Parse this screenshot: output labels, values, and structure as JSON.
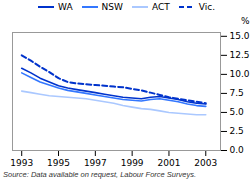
{
  "chart_data": {
    "type": "line",
    "ylabel": "%",
    "annotations": [
      "Source: Data available on request, Labour Force Surveys."
    ],
    "x": [
      1993,
      1993.5,
      1994,
      1994.5,
      1995,
      1995.5,
      1996,
      1996.5,
      1997,
      1997.5,
      1998,
      1998.5,
      1999,
      1999.5,
      2000,
      2000.5,
      2001,
      2001.5,
      2002,
      2002.5,
      2003
    ],
    "series": [
      {
        "name": "WA",
        "color": "#0033cc",
        "line_style": "solid",
        "values": [
          10.8,
          10.2,
          9.5,
          9.0,
          8.5,
          8.2,
          8.0,
          7.8,
          7.6,
          7.4,
          7.2,
          7.0,
          6.9,
          6.8,
          7.0,
          7.1,
          6.9,
          6.7,
          6.4,
          6.2,
          6.1
        ]
      },
      {
        "name": "NSW",
        "color": "#3377ff",
        "line_style": "solid",
        "values": [
          10.2,
          9.6,
          9.0,
          8.6,
          8.2,
          7.9,
          7.7,
          7.5,
          7.3,
          7.1,
          6.9,
          6.7,
          6.6,
          6.5,
          6.7,
          6.8,
          6.6,
          6.4,
          6.1,
          5.9,
          5.8
        ]
      },
      {
        "name": "ACT",
        "color": "#aac8ff",
        "line_style": "solid",
        "values": [
          7.8,
          7.6,
          7.4,
          7.2,
          7.1,
          7.0,
          6.9,
          6.8,
          6.6,
          6.4,
          6.2,
          5.9,
          5.7,
          5.5,
          5.4,
          5.2,
          5.0,
          4.9,
          4.8,
          4.7,
          4.7
        ]
      },
      {
        "name": "Vic.",
        "color": "#0033cc",
        "line_style": "dashed",
        "values": [
          12.5,
          11.8,
          11.0,
          10.3,
          9.5,
          9.0,
          8.8,
          8.7,
          8.6,
          8.5,
          8.4,
          8.3,
          8.1,
          7.9,
          7.6,
          7.3,
          7.0,
          6.8,
          6.6,
          6.4,
          6.2
        ]
      }
    ],
    "xlim": [
      1992.5,
      2003.8
    ],
    "xticks": [
      1993,
      1995,
      1997,
      1999,
      2001,
      2003
    ],
    "ylim": [
      0,
      15.5
    ],
    "yticks": [
      {
        "value": 0,
        "label": "0.0"
      },
      {
        "value": 2.5,
        "label": "2.5"
      },
      {
        "value": 5,
        "label": "5.0"
      },
      {
        "value": 7.5,
        "label": "7.5"
      },
      {
        "value": 10,
        "label": "10.0"
      },
      {
        "value": 12.5,
        "label": "12.5"
      },
      {
        "value": 15,
        "label": "15.0"
      }
    ],
    "grid": false,
    "legend": "top"
  }
}
